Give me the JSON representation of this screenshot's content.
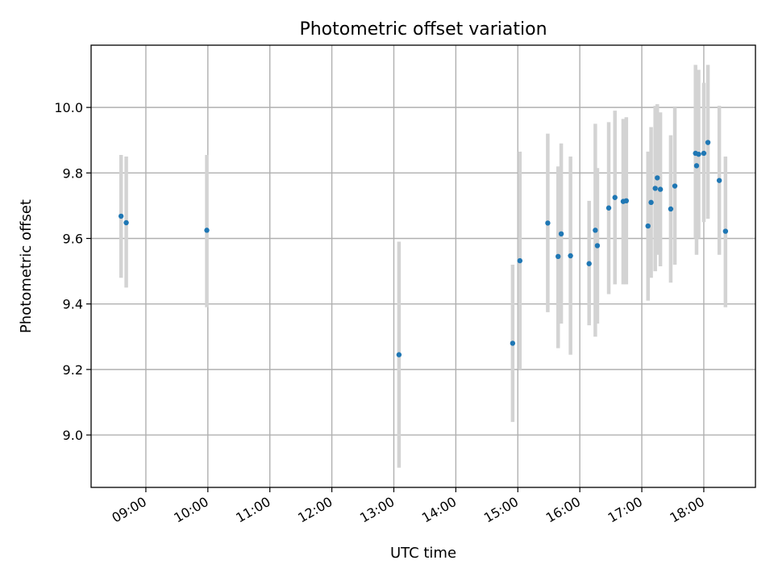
{
  "chart_data": {
    "type": "scatter",
    "title": "Photometric offset variation",
    "xlabel": "UTC time",
    "ylabel": "Photometric offset",
    "x_tick_labels": [
      "09:00",
      "10:00",
      "11:00",
      "12:00",
      "13:00",
      "14:00",
      "15:00",
      "16:00",
      "17:00",
      "18:00"
    ],
    "x_ticks": [
      "09:00",
      "10:00",
      "11:00",
      "12:00",
      "13:00",
      "14:00",
      "15:00",
      "16:00",
      "17:00",
      "18:00"
    ],
    "xlim": [
      "08:07",
      "18:50"
    ],
    "y_ticks": [
      9.0,
      9.2,
      9.4,
      9.6,
      9.8,
      10.0
    ],
    "y_tick_labels": [
      "9.0",
      "9.2",
      "9.4",
      "9.6",
      "9.8",
      "10.0"
    ],
    "ylim": [
      8.84,
      10.19
    ],
    "grid": true,
    "series": [
      {
        "marker_color": "#1f77b4",
        "errorbar_color": "#d3d3d3",
        "points": [
          {
            "x": "08:36",
            "y": 9.668,
            "lo": 9.48,
            "hi": 9.855
          },
          {
            "x": "08:41",
            "y": 9.648,
            "lo": 9.45,
            "hi": 9.85
          },
          {
            "x": "09:59",
            "y": 9.625,
            "lo": 9.39,
            "hi": 9.855
          },
          {
            "x": "13:05",
            "y": 9.245,
            "lo": 8.9,
            "hi": 9.59
          },
          {
            "x": "14:55",
            "y": 9.28,
            "lo": 9.04,
            "hi": 9.52
          },
          {
            "x": "15:02",
            "y": 9.532,
            "lo": 9.2,
            "hi": 9.865
          },
          {
            "x": "15:29",
            "y": 9.647,
            "lo": 9.375,
            "hi": 9.92
          },
          {
            "x": "15:39",
            "y": 9.545,
            "lo": 9.265,
            "hi": 9.82
          },
          {
            "x": "15:42",
            "y": 9.614,
            "lo": 9.34,
            "hi": 9.89
          },
          {
            "x": "15:51",
            "y": 9.547,
            "lo": 9.245,
            "hi": 9.85
          },
          {
            "x": "16:09",
            "y": 9.523,
            "lo": 9.335,
            "hi": 9.715
          },
          {
            "x": "16:15",
            "y": 9.625,
            "lo": 9.3,
            "hi": 9.95
          },
          {
            "x": "16:17",
            "y": 9.578,
            "lo": 9.34,
            "hi": 9.815
          },
          {
            "x": "16:28",
            "y": 9.693,
            "lo": 9.43,
            "hi": 9.955
          },
          {
            "x": "16:34",
            "y": 9.725,
            "lo": 9.46,
            "hi": 9.99
          },
          {
            "x": "16:42",
            "y": 9.713,
            "lo": 9.46,
            "hi": 9.965
          },
          {
            "x": "16:45",
            "y": 9.715,
            "lo": 9.46,
            "hi": 9.97
          },
          {
            "x": "17:06",
            "y": 9.638,
            "lo": 9.41,
            "hi": 9.865
          },
          {
            "x": "17:09",
            "y": 9.71,
            "lo": 9.48,
            "hi": 9.94
          },
          {
            "x": "17:13",
            "y": 9.753,
            "lo": 9.5,
            "hi": 10.005
          },
          {
            "x": "17:15",
            "y": 9.785,
            "lo": 9.55,
            "hi": 10.01
          },
          {
            "x": "17:18",
            "y": 9.75,
            "lo": 9.515,
            "hi": 9.985
          },
          {
            "x": "17:28",
            "y": 9.69,
            "lo": 9.465,
            "hi": 9.915
          },
          {
            "x": "17:32",
            "y": 9.76,
            "lo": 9.52,
            "hi": 10.0
          },
          {
            "x": "17:52",
            "y": 9.86,
            "lo": 9.6,
            "hi": 10.13
          },
          {
            "x": "17:53",
            "y": 9.822,
            "lo": 9.55,
            "hi": 10.095
          },
          {
            "x": "17:55",
            "y": 9.857,
            "lo": 9.6,
            "hi": 10.115
          },
          {
            "x": "18:00",
            "y": 9.86,
            "lo": 9.65,
            "hi": 10.075
          },
          {
            "x": "18:04",
            "y": 9.893,
            "lo": 9.66,
            "hi": 10.13
          },
          {
            "x": "18:15",
            "y": 9.777,
            "lo": 9.55,
            "hi": 10.005
          },
          {
            "x": "18:21",
            "y": 9.622,
            "lo": 9.39,
            "hi": 9.85
          }
        ]
      }
    ]
  }
}
